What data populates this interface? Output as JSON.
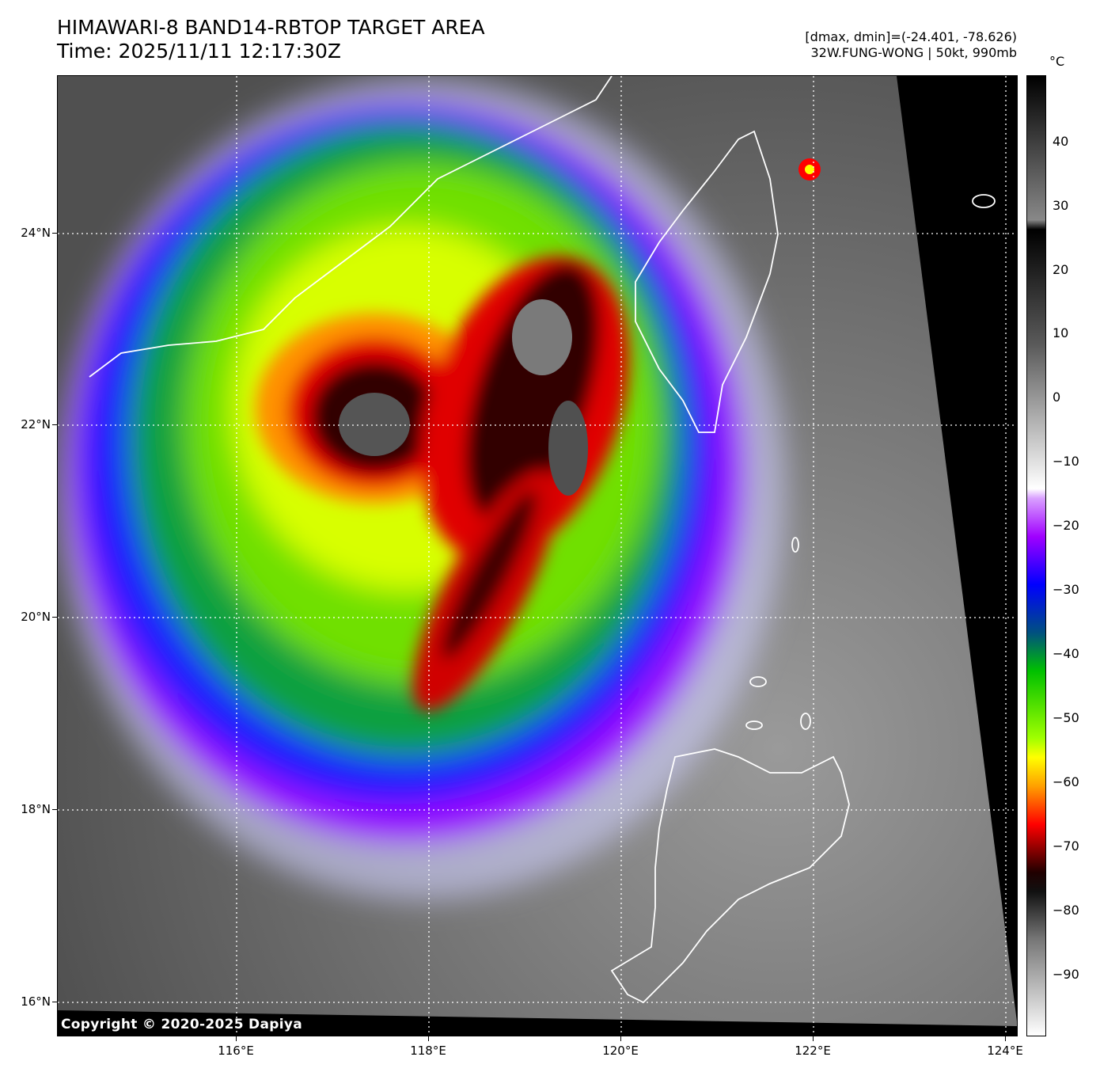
{
  "header": {
    "title_line1": "HIMAWARI-8 BAND14-RBTOP TARGET AREA",
    "title_line2": "Time: 2025/11/11 12:17:30Z",
    "dminmax": "[dmax, dmin]=(-24.401, -78.626)",
    "storm_info": "32W.FUNG-WONG | 50kt, 990mb"
  },
  "copyright": "Copyright © 2020-2025 Dapiya",
  "axes": {
    "latitude_labels": [
      "24°N",
      "22°N",
      "20°N",
      "18°N",
      "16°N"
    ],
    "longitude_labels": [
      "116°E",
      "118°E",
      "120°E",
      "122°E",
      "124°E"
    ],
    "grid": true
  },
  "colorbar": {
    "unit": "°C",
    "tick_labels": [
      "40",
      "30",
      "20",
      "10",
      "0",
      "−10",
      "−20",
      "−30",
      "−40",
      "−50",
      "−60",
      "−70",
      "−80",
      "−90"
    ]
  },
  "colors": {
    "cold_top": "#202020",
    "red_band": "#ff0000",
    "orange": "#ffa000",
    "yellow": "#ffff00",
    "green": "#00c000",
    "blue": "#0000ff",
    "purple": "#a000ff",
    "coastline": "#ffffff"
  }
}
